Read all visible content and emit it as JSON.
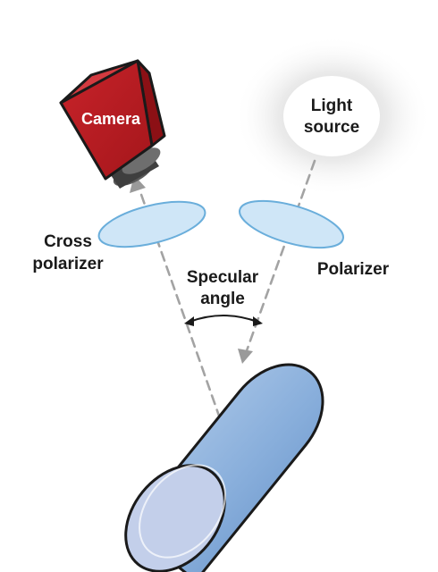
{
  "labels": {
    "camera": "Camera",
    "light_line1": "Light",
    "light_line2": "source",
    "cross_line1": "Cross",
    "cross_line2": "polarizer",
    "specular_line1": "Specular",
    "specular_line2": "angle",
    "polarizer": "Polarizer"
  },
  "colors": {
    "camera_front": "#c01d22",
    "camera_side": "#8e1116",
    "camera_top": "#d23a3e",
    "lens": "#4a4a4a",
    "polarizer_fill": "#cfe6f7",
    "polarizer_stroke": "#6aaedb",
    "beam": "#a0a0a0",
    "cylinder_body": "#7fa8d6",
    "cylinder_end": "#c3cfea",
    "glow": "#d8d8d8"
  }
}
